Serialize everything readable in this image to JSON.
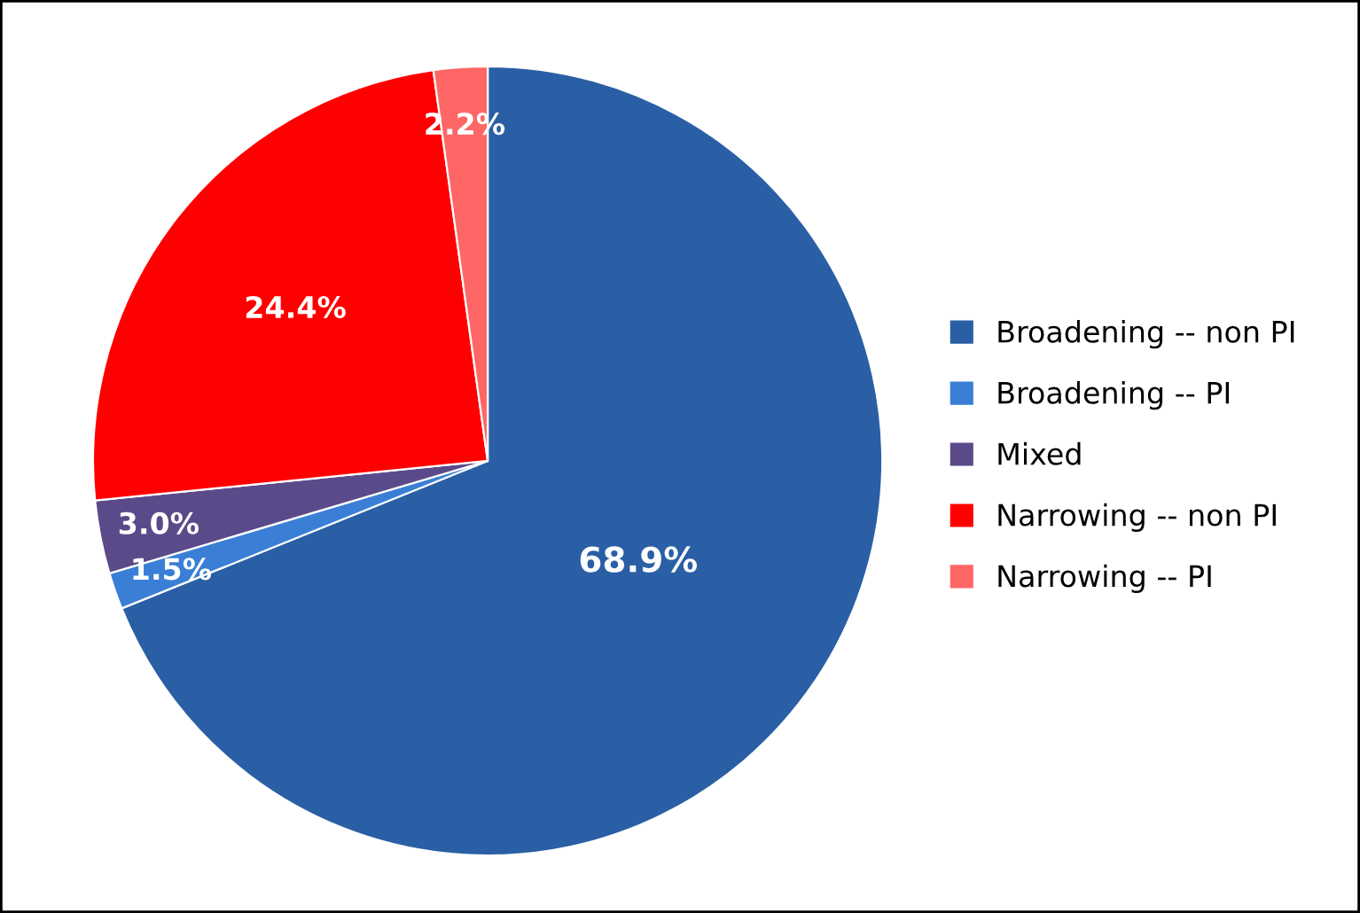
{
  "chart_data": {
    "type": "pie",
    "categories": [
      "Broadening -- non PI",
      "Broadening -- PI",
      "Mixed",
      "Narrowing -- non PI",
      "Narrowing -- PI"
    ],
    "values": [
      68.9,
      1.5,
      3.0,
      24.4,
      2.2
    ],
    "value_labels": [
      "68.9%",
      "1.5%",
      "3.0%",
      "24.4%",
      "2.2%"
    ],
    "colors": [
      "#2a5fa5",
      "#3a7fd5",
      "#5b4a8a",
      "#ff0000",
      "#ff6666"
    ],
    "legend": "right"
  }
}
